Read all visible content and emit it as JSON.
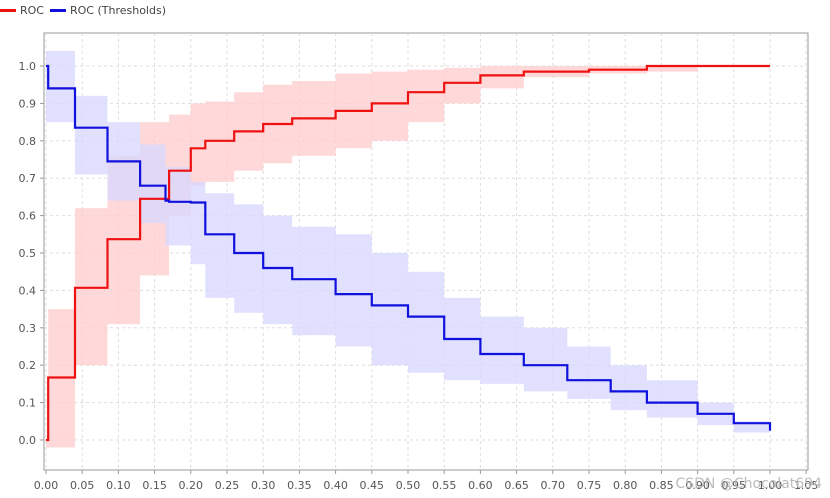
{
  "chart_data": {
    "type": "line",
    "title": "",
    "xlabel": "",
    "ylabel": "",
    "xlim": [
      0,
      1.0
    ],
    "ylim": [
      -0.08,
      1.1
    ],
    "grid": true,
    "legend_placement": "top-left",
    "x_ticks": [
      "0.00",
      "0.05",
      "0.10",
      "0.15",
      "0.20",
      "0.25",
      "0.30",
      "0.35",
      "0.40",
      "0.45",
      "0.50",
      "0.55",
      "0.60",
      "0.65",
      "0.70",
      "0.75",
      "0.80",
      "0.85",
      "0.90",
      "0.95",
      "1.00",
      "1.05"
    ],
    "y_ticks": [
      "0.0",
      "0.1",
      "0.2",
      "0.3",
      "0.4",
      "0.5",
      "0.6",
      "0.7",
      "0.8",
      "0.9",
      "1.0"
    ],
    "series": [
      {
        "name": "ROC",
        "color": "#ee1111",
        "band_color": "#ffcccc",
        "x": [
          0.0,
          0.003,
          0.04,
          0.085,
          0.13,
          0.17,
          0.2,
          0.22,
          0.26,
          0.3,
          0.34,
          0.4,
          0.45,
          0.5,
          0.55,
          0.6,
          0.66,
          0.75,
          0.83,
          0.9,
          1.0
        ],
        "y": [
          0.0,
          0.167,
          0.407,
          0.537,
          0.645,
          0.72,
          0.78,
          0.8,
          0.825,
          0.845,
          0.86,
          0.88,
          0.9,
          0.93,
          0.955,
          0.975,
          0.985,
          0.99,
          1.0,
          1.0,
          1.0
        ],
        "lower": [
          -0.02,
          -0.02,
          0.2,
          0.31,
          0.44,
          0.6,
          0.68,
          0.69,
          0.72,
          0.74,
          0.76,
          0.78,
          0.8,
          0.85,
          0.9,
          0.94,
          0.97,
          0.98,
          0.985,
          1.0,
          1.0
        ],
        "upper": [
          0.0,
          0.35,
          0.62,
          0.76,
          0.85,
          0.87,
          0.9,
          0.905,
          0.93,
          0.95,
          0.96,
          0.98,
          0.985,
          0.99,
          0.995,
          1.0,
          1.0,
          1.0,
          1.0,
          1.0,
          1.0
        ]
      },
      {
        "name": "ROC (Thresholds)",
        "color": "#1111dd",
        "band_color": "#d7d7ff",
        "x": [
          0.0,
          0.003,
          0.04,
          0.085,
          0.13,
          0.165,
          0.17,
          0.2,
          0.22,
          0.26,
          0.3,
          0.34,
          0.4,
          0.45,
          0.5,
          0.55,
          0.6,
          0.66,
          0.72,
          0.78,
          0.83,
          0.9,
          0.95,
          1.0
        ],
        "y": [
          1.0,
          0.94,
          0.835,
          0.745,
          0.68,
          0.64,
          0.637,
          0.635,
          0.55,
          0.5,
          0.46,
          0.43,
          0.39,
          0.36,
          0.33,
          0.27,
          0.23,
          0.2,
          0.16,
          0.13,
          0.1,
          0.07,
          0.045,
          0.025
        ],
        "lower": [
          0.85,
          0.85,
          0.71,
          0.64,
          0.58,
          0.52,
          0.52,
          0.47,
          0.38,
          0.34,
          0.31,
          0.28,
          0.25,
          0.2,
          0.18,
          0.16,
          0.15,
          0.13,
          0.11,
          0.08,
          0.06,
          0.04,
          0.02,
          0.02
        ],
        "upper": [
          1.04,
          1.04,
          0.92,
          0.85,
          0.79,
          0.73,
          0.73,
          0.69,
          0.66,
          0.63,
          0.6,
          0.57,
          0.55,
          0.5,
          0.45,
          0.38,
          0.33,
          0.3,
          0.25,
          0.2,
          0.16,
          0.1,
          0.05,
          0.04
        ]
      }
    ]
  },
  "watermark": "CSDN @Chocolat694"
}
